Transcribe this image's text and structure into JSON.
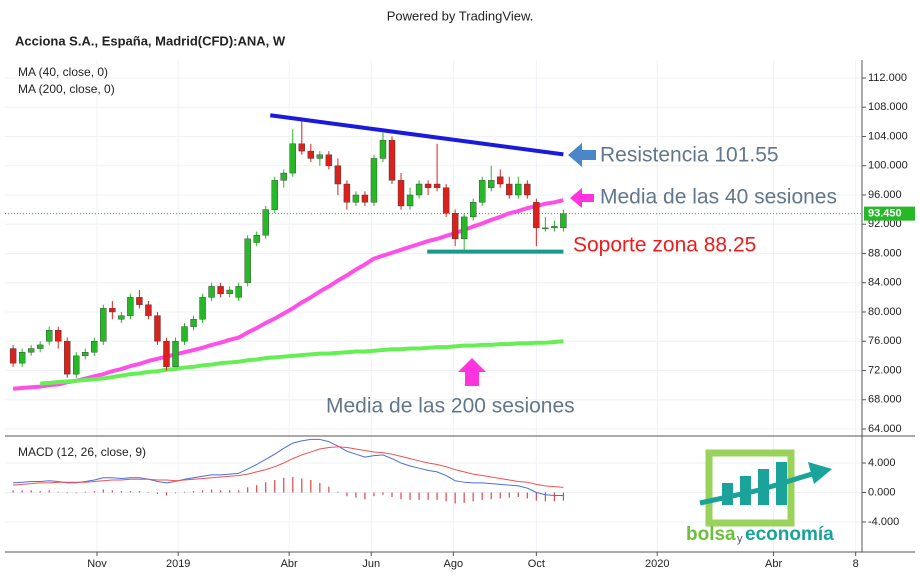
{
  "header": {
    "powered_by": "Powered by TradingView."
  },
  "chart_data": [
    {
      "type": "candlestick",
      "title": "Acciona S.A., España, Madrid(CFD):ANA, W",
      "categories": [
        null,
        null,
        null,
        null,
        null,
        null,
        null,
        null,
        null,
        null,
        null,
        null,
        null,
        null,
        null,
        null,
        null,
        null,
        null,
        null,
        null,
        null,
        null,
        null,
        null,
        null,
        null,
        null,
        null,
        null,
        null,
        null,
        null,
        null,
        null,
        null,
        null,
        null,
        null,
        null,
        null,
        null,
        null,
        null,
        null,
        null,
        null,
        null,
        null,
        null,
        null,
        null,
        null,
        null,
        null,
        null,
        null,
        null,
        null,
        null,
        null,
        null
      ],
      "open": [
        75,
        73,
        74.5,
        75,
        76,
        77.5,
        76,
        71.5,
        74,
        74.5,
        76,
        80.5,
        79,
        79.5,
        82,
        81,
        79.5,
        76,
        72.5,
        76,
        78,
        79,
        82,
        83.5,
        82.5,
        82,
        84,
        89.5,
        90.5,
        94,
        98,
        99,
        103,
        102,
        101,
        101.5,
        100,
        97.5,
        95,
        96,
        95,
        101,
        103.5,
        98,
        94.5,
        96,
        97.5,
        97.5,
        97,
        93.5,
        90,
        93,
        95,
        97,
        98.5,
        97.5,
        96,
        97.5,
        95,
        91.5,
        91.5,
        91.5
      ],
      "high": [
        75.5,
        75,
        75.5,
        76,
        78,
        78,
        76.5,
        74.5,
        75,
        76.5,
        81,
        81.5,
        80,
        82.5,
        83,
        81.5,
        80,
        76.5,
        76.5,
        78.5,
        79.5,
        82.5,
        84,
        84,
        83.5,
        84,
        90.5,
        91,
        94.5,
        98.5,
        99.5,
        105,
        106.5,
        103,
        102,
        102,
        101,
        98,
        96.5,
        96.5,
        101.5,
        104.5,
        104,
        99,
        97,
        98,
        98,
        103,
        97.5,
        94,
        93.5,
        95.5,
        98.5,
        100,
        99.5,
        98.5,
        98.5,
        98,
        95.5,
        93,
        92.5,
        94
      ],
      "low": [
        72.5,
        72.5,
        74,
        74.5,
        75.5,
        75,
        71,
        71,
        73.5,
        74,
        75.5,
        79,
        78.5,
        79,
        80.5,
        79,
        75.5,
        72,
        72.5,
        75.5,
        77.5,
        78.5,
        81.5,
        82,
        82,
        81.5,
        83.5,
        89,
        90,
        93.5,
        97,
        98.5,
        101.5,
        100.5,
        100,
        99.5,
        96,
        94,
        94.5,
        94.5,
        94.5,
        100.5,
        97.5,
        94,
        94,
        95.5,
        96,
        96.5,
        93,
        89,
        88.5,
        92.5,
        94.5,
        96.5,
        97,
        95.5,
        95.5,
        95.5,
        89,
        91,
        91,
        91
      ],
      "close": [
        73,
        74.5,
        75,
        75.5,
        77.5,
        76,
        71.5,
        74,
        74.5,
        76,
        80.5,
        80,
        79.5,
        82,
        81,
        79.5,
        76,
        72.5,
        76,
        78,
        79,
        82,
        83.5,
        82.5,
        83,
        83.5,
        90,
        90.5,
        94,
        98,
        99,
        103,
        102,
        101,
        101.5,
        100,
        97.5,
        95,
        96,
        95,
        101,
        103.5,
        98,
        94.5,
        96,
        97.5,
        97,
        97,
        93.5,
        90,
        93,
        95,
        98,
        98,
        97.5,
        96,
        97.5,
        96,
        91.5,
        91.5,
        91.7,
        93.45
      ],
      "up_color": "#26b826",
      "down_color": "#d9221c",
      "series": [
        {
          "name": "MA (40, close, 0)",
          "color": "#ff4fe6",
          "values": [
            69.5,
            69.6,
            69.7,
            69.8,
            70.0,
            70.1,
            70.4,
            70.6,
            70.9,
            71.2,
            71.5,
            71.9,
            72.2,
            72.6,
            72.9,
            73.3,
            73.6,
            73.9,
            74.2,
            74.5,
            74.8,
            75.1,
            75.5,
            75.8,
            76.2,
            76.5,
            77.2,
            77.8,
            78.5,
            79.1,
            79.8,
            80.5,
            81.3,
            82.0,
            82.8,
            83.5,
            84.3,
            85.0,
            85.8,
            86.5,
            87.3,
            87.7,
            88.1,
            88.5,
            88.9,
            89.3,
            89.7,
            90.0,
            90.4,
            90.8,
            91.2,
            91.7,
            92.1,
            92.6,
            93.0,
            93.5,
            93.8,
            94.2,
            94.5,
            94.8,
            95.0,
            95.3
          ]
        },
        {
          "name": "MA (200, close, 0)",
          "color": "#66ee55",
          "values": [
            null,
            null,
            null,
            70.2,
            70.3,
            70.4,
            70.5,
            70.6,
            70.7,
            70.8,
            70.9,
            71.1,
            71.3,
            71.5,
            71.6,
            71.8,
            71.9,
            72.1,
            72.2,
            72.4,
            72.5,
            72.7,
            72.8,
            73.0,
            73.1,
            73.2,
            73.4,
            73.5,
            73.7,
            73.8,
            73.9,
            74.0,
            74.1,
            74.2,
            74.3,
            74.3,
            74.4,
            74.5,
            74.6,
            74.6,
            74.7,
            74.8,
            74.9,
            74.9,
            75.0,
            75.0,
            75.1,
            75.2,
            75.2,
            75.3,
            75.4,
            75.4,
            75.5,
            75.5,
            75.6,
            75.6,
            75.7,
            75.7,
            75.8,
            75.8,
            75.9,
            76.0
          ]
        }
      ],
      "xlim": [
        -0.9,
        94.1
      ],
      "xticks": [
        {
          "value": 9.3,
          "label": "Nov"
        },
        {
          "value": 18.3,
          "label": "2019"
        },
        {
          "value": 30.6,
          "label": "Abr"
        },
        {
          "value": 39.7,
          "label": "Jun"
        },
        {
          "value": 48.8,
          "label": "Ago"
        },
        {
          "value": 58.0,
          "label": "Oct"
        },
        {
          "value": 71.4,
          "label": "2020"
        },
        {
          "value": 84.3,
          "label": "Abr"
        },
        {
          "value": 93.4,
          "label": "8"
        }
      ],
      "ylim": [
        63.04,
        114.46
      ],
      "yticks": [
        {
          "value": 64,
          "label": "64.000"
        },
        {
          "value": 68,
          "label": "68.000"
        },
        {
          "value": 72,
          "label": "72.000"
        },
        {
          "value": 76,
          "label": "76.000"
        },
        {
          "value": 80,
          "label": "80.000"
        },
        {
          "value": 84,
          "label": "84.000"
        },
        {
          "value": 88,
          "label": "88.000"
        },
        {
          "value": 92,
          "label": "92.000"
        },
        {
          "value": 96,
          "label": "96.000"
        },
        {
          "value": 100,
          "label": "100.000"
        },
        {
          "value": 104,
          "label": "104.000"
        },
        {
          "value": 108,
          "label": "108.000"
        },
        {
          "value": 112,
          "label": "112.000"
        }
      ],
      "grid": true,
      "last_price": {
        "value": 93.45,
        "label": "93.450",
        "color": "#26b826"
      },
      "annotations": [
        {
          "text": "Resistencia 101.55",
          "color": "#62778c",
          "line": {
            "x": [
              28.5,
              61
            ],
            "y": [
              106.9,
              101.55
            ],
            "color": "#1a1adc"
          }
        },
        {
          "text": "Media de las 40 sesiones",
          "color": "#62778c"
        },
        {
          "text": "Soporte zona 88.25",
          "color": "#ee1c1c",
          "line": {
            "x": [
              45.9,
              61
            ],
            "y": [
              88.25,
              88.25
            ],
            "color": "#1a9a8a"
          }
        },
        {
          "text": "Media de las 200 sesiones",
          "color": "#62778c"
        }
      ]
    },
    {
      "type": "macd",
      "title": "MACD (12, 26, close, 9)",
      "series": [
        {
          "style": "bars",
          "color": "#e04545",
          "values": [
            0.3,
            0.3,
            0.3,
            0.2,
            0.3,
            0.1,
            -0.1,
            -0.1,
            0.1,
            0.2,
            0.4,
            0.3,
            0.2,
            0.2,
            0.2,
            0.0,
            -0.2,
            -0.4,
            -0.1,
            0.1,
            0.2,
            0.3,
            0.4,
            0.3,
            0.3,
            0.3,
            0.7,
            1.0,
            1.4,
            1.7,
            2.0,
            2.1,
            1.9,
            1.7,
            1.3,
            0.8,
            0.1,
            -0.5,
            -0.7,
            -0.9,
            -0.5,
            -0.3,
            -0.6,
            -0.9,
            -1.0,
            -1.0,
            -1.0,
            -1.0,
            -1.2,
            -1.5,
            -1.4,
            -1.2,
            -1.0,
            -0.9,
            -0.8,
            -0.7,
            -0.6,
            -0.8,
            -1.1,
            -1.2,
            -1.2,
            -1.1
          ]
        },
        {
          "style": "line",
          "color": "#4a6ee0",
          "values": [
            1.3,
            1.4,
            1.5,
            1.5,
            1.6,
            1.5,
            1.3,
            1.3,
            1.5,
            1.7,
            2.0,
            2.0,
            1.9,
            2.0,
            2.0,
            1.8,
            1.5,
            1.3,
            1.5,
            1.8,
            2.0,
            2.2,
            2.4,
            2.4,
            2.5,
            2.6,
            3.2,
            3.8,
            4.5,
            5.2,
            6.0,
            6.7,
            7.0,
            7.2,
            7.2,
            6.9,
            6.3,
            5.6,
            5.2,
            4.8,
            5.0,
            5.1,
            4.6,
            4.0,
            3.6,
            3.3,
            3.0,
            2.8,
            2.3,
            1.6,
            1.4,
            1.3,
            1.3,
            1.2,
            1.1,
            1.0,
            0.9,
            0.6,
            0.0,
            -0.3,
            -0.4,
            -0.4
          ]
        },
        {
          "style": "line",
          "color": "#ef5350",
          "values": [
            1.0,
            1.1,
            1.2,
            1.3,
            1.3,
            1.4,
            1.4,
            1.4,
            1.4,
            1.5,
            1.6,
            1.7,
            1.7,
            1.8,
            1.8,
            1.8,
            1.7,
            1.7,
            1.6,
            1.7,
            1.8,
            1.9,
            2.0,
            2.1,
            2.2,
            2.3,
            2.5,
            2.8,
            3.1,
            3.5,
            4.0,
            4.6,
            5.1,
            5.5,
            5.9,
            6.1,
            6.2,
            6.1,
            5.9,
            5.7,
            5.5,
            5.4,
            5.2,
            4.9,
            4.6,
            4.3,
            4.0,
            3.8,
            3.5,
            3.1,
            2.8,
            2.5,
            2.3,
            2.1,
            1.9,
            1.7,
            1.5,
            1.4,
            1.1,
            0.9,
            0.8,
            0.7
          ]
        }
      ],
      "ylim": [
        -8.07,
        7.53
      ],
      "yticks": [
        {
          "value": 4,
          "label": "4.000"
        },
        {
          "value": 0,
          "label": "0.000"
        },
        {
          "value": -4,
          "label": "-4.000"
        }
      ],
      "grid": true
    }
  ],
  "logo": {
    "part1": "bolsa",
    "part2": "y",
    "part3": "economía"
  }
}
